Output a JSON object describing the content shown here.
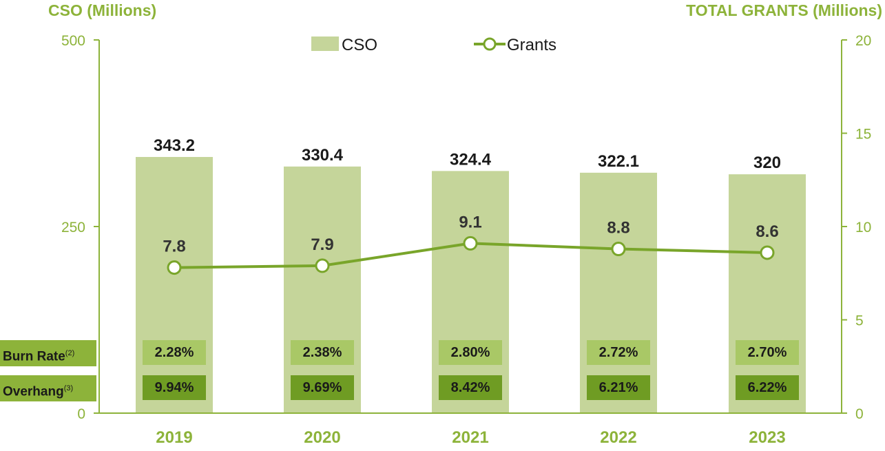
{
  "chart_data": {
    "type": "bar",
    "left_axis_title": "CSO (Millions)",
    "right_axis_title": "TOTAL GRANTS (Millions)",
    "categories": [
      "2019",
      "2020",
      "2021",
      "2022",
      "2023"
    ],
    "left_ylim": [
      0,
      500
    ],
    "left_ticks": [
      "0",
      "250",
      "500"
    ],
    "right_ylim": [
      0,
      20
    ],
    "right_ticks": [
      "0",
      "5",
      "10",
      "15",
      "20"
    ],
    "series": [
      {
        "name": "CSO",
        "type": "bar",
        "axis": "left",
        "values": [
          343.2,
          330.4,
          324.4,
          322.1,
          320
        ],
        "labels": [
          "343.2",
          "330.4",
          "324.4",
          "322.1",
          "320"
        ]
      },
      {
        "name": "Grants",
        "type": "line",
        "axis": "right",
        "values": [
          7.8,
          7.9,
          9.1,
          8.8,
          8.6
        ],
        "labels": [
          "7.8",
          "7.9",
          "9.1",
          "8.8",
          "8.6"
        ]
      }
    ],
    "rows": [
      {
        "label": "Burn Rate",
        "note": "(2)",
        "values": [
          "2.28%",
          "2.38%",
          "2.80%",
          "2.72%",
          "2.70%"
        ]
      },
      {
        "label": "Overhang",
        "note": "(3)",
        "values": [
          "9.94%",
          "9.69%",
          "8.42%",
          "6.21%",
          "6.22%"
        ]
      }
    ],
    "legend": [
      "CSO",
      "Grants"
    ],
    "legend_position": "top-center",
    "colors": {
      "bar": "#c5d59a",
      "line": "#79a52a",
      "axis": "#8db33a",
      "burn_box": "#a9c866",
      "overhang_box": "#6f9c23",
      "row_label": "#8db33a"
    }
  }
}
